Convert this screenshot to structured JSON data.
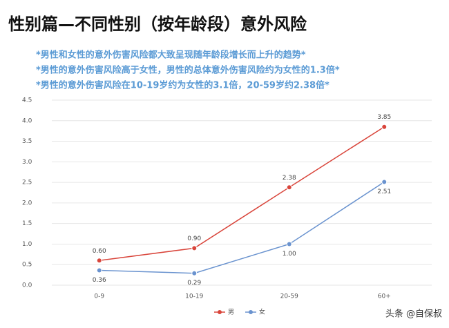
{
  "chart_data": {
    "type": "line",
    "title": "性别篇—不同性别（按年龄段）意外风险",
    "notes": [
      "*男性和女性的意外伤害风险都大致呈现随年龄段增长而上升的趋势*",
      "*男性的意外伤害风险高于女性，男性的总体意外伤害风险约为女性的1.3倍*",
      "*男性的意外伤害风险在10-19岁约为女性的3.1倍，20-59岁约2.38倍*"
    ],
    "categories": [
      "0-9",
      "10-19",
      "20-59",
      "60+"
    ],
    "series": [
      {
        "name": "男",
        "color": "#d9453b",
        "values": [
          0.6,
          0.9,
          2.38,
          3.85
        ],
        "value_labels": [
          "0.60",
          "0.90",
          "2.38",
          "3.85"
        ]
      },
      {
        "name": "女",
        "color": "#6a93cf",
        "values": [
          0.36,
          0.29,
          1.0,
          2.51
        ],
        "value_labels": [
          "0.36",
          "0.29",
          "1.00",
          "2.51"
        ]
      }
    ],
    "ylim": [
      0,
      4.5
    ],
    "yticks": [
      {
        "value": 0,
        "label": "0.0"
      },
      0.5,
      {
        "value": 1,
        "label": "1.0"
      },
      1.5,
      {
        "value": 2,
        "label": "2.0"
      },
      2.5,
      {
        "value": 3,
        "label": "3.0"
      },
      3.5,
      {
        "value": 4,
        "label": "4.0"
      },
      4.5
    ],
    "grid": true,
    "legend": "bottom",
    "watermark": "头条 @自保叔"
  }
}
